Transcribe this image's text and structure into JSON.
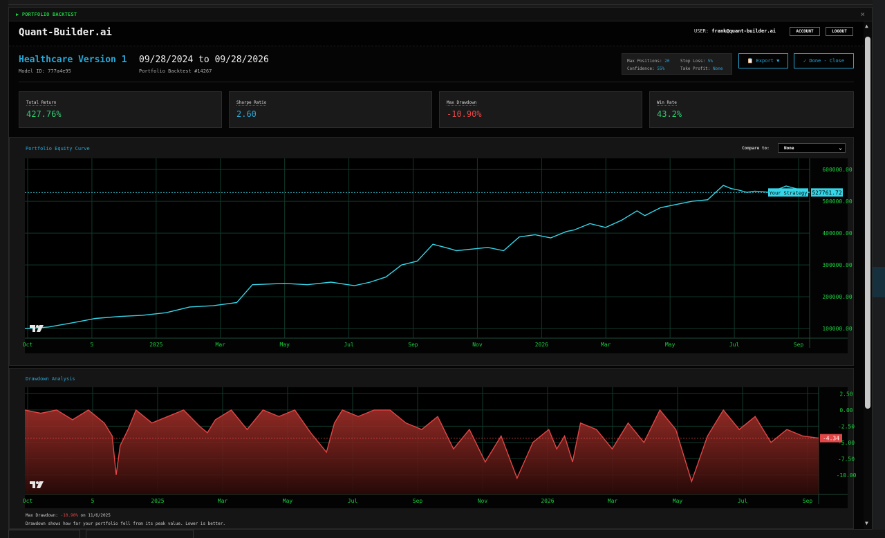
{
  "window": {
    "title": "▶ PORTFOLIO BACKTEST",
    "close_icon": "×"
  },
  "header": {
    "brand": "Quant-Builder.ai",
    "user_label": "USER:",
    "user_email": "frank@quant-builder.ai",
    "account_label": "ACCOUNT",
    "logout_label": "LOGOUT"
  },
  "info": {
    "model_name": "Healthcare Version 1",
    "date_range": "09/28/2024 to 09/28/2026",
    "model_id": "Model ID: 777a4e95",
    "backtest_id": "Portfolio Backtest #14267"
  },
  "params": {
    "max_positions_label": "Max Positions:",
    "max_positions": "20",
    "stop_loss_label": "Stop Loss:",
    "stop_loss": "5%",
    "confidence_label": "Confidence:",
    "confidence": "55%",
    "take_profit_label": "Take Profit:",
    "take_profit": "None"
  },
  "actions": {
    "export_label": "📋 Export ▼",
    "done_label": "✓ Done - Close"
  },
  "metrics": [
    {
      "label": "Total Return",
      "value": "427.76%",
      "color": "#2ecc71"
    },
    {
      "label": "Sharpe Ratio",
      "value": "2.60",
      "color": "#27a8d8"
    },
    {
      "label": "Max Drawdown",
      "value": "-10.90%",
      "color": "#e24646"
    },
    {
      "label": "Win Rate",
      "value": "43.2%",
      "color": "#2ecc71"
    }
  ],
  "equity_panel": {
    "title": "Portfolio Equity Curve",
    "compare_label": "Compare to:",
    "compare_value": "None",
    "strategy_tag": "Your Strategy",
    "last_value_label": "527761.72"
  },
  "drawdown_panel": {
    "title": "Drawdown Analysis",
    "last_value_label": "-4.34",
    "max_dd_label": "Max Drawdown:",
    "max_dd_value": "-10.90%",
    "max_dd_date": "on 11/6/2025",
    "explanation": "Drawdown shows how far your portfolio fell from its peak value. Lower is better."
  },
  "colors": {
    "accent": "#27a8d8",
    "line": "#35d6e8",
    "drawdown": "#e24646",
    "positive": "#2ecc71",
    "tick": "#19d33f"
  },
  "chart_data": [
    {
      "type": "line",
      "xlabels": [
        "Oct",
        "5",
        "2025",
        "Mar",
        "May",
        "Jul",
        "Sep",
        "Nov",
        "2026",
        "Mar",
        "May",
        "Jul",
        "Sep"
      ],
      "yticks": [
        "600000.00",
        "500000.00",
        "400000.00",
        "300000.00",
        "200000.00",
        "100000.00"
      ],
      "ylim": [
        70000,
        635000
      ],
      "series": [
        {
          "name": "Your Strategy",
          "x": [
            0,
            0.03,
            0.06,
            0.09,
            0.12,
            0.15,
            0.18,
            0.21,
            0.24,
            0.27,
            0.29,
            0.31,
            0.33,
            0.36,
            0.39,
            0.42,
            0.44,
            0.46,
            0.48,
            0.5,
            0.52,
            0.54,
            0.55,
            0.57,
            0.59,
            0.61,
            0.63,
            0.65,
            0.67,
            0.69,
            0.7,
            0.72,
            0.74,
            0.76,
            0.78,
            0.79,
            0.81,
            0.83,
            0.85,
            0.87,
            0.89,
            0.9,
            0.91,
            0.92,
            0.93,
            0.95,
            0.97,
            0.99,
            1.0
          ],
          "y": [
            100000,
            105000,
            118000,
            132000,
            138000,
            142000,
            150000,
            168000,
            172000,
            182000,
            238000,
            240000,
            242000,
            238000,
            246000,
            235000,
            246000,
            262000,
            300000,
            312000,
            365000,
            352000,
            345000,
            350000,
            355000,
            345000,
            388000,
            395000,
            385000,
            405000,
            410000,
            430000,
            418000,
            440000,
            470000,
            455000,
            480000,
            490000,
            500000,
            505000,
            550000,
            540000,
            535000,
            528000,
            532000,
            528000,
            548000,
            535000,
            527761
          ]
        }
      ],
      "last_value": 527761.72,
      "grid": true
    },
    {
      "type": "area",
      "xlabels": [
        "Oct",
        "5",
        "2025",
        "Mar",
        "May",
        "Jul",
        "Sep",
        "Nov",
        "2026",
        "Mar",
        "May",
        "Jul",
        "Sep"
      ],
      "yticks": [
        "2.50",
        "0.00",
        "-2.50",
        "-5.00",
        "-7.50",
        "-10.00"
      ],
      "ylim": [
        -13,
        3.5
      ],
      "series": [
        {
          "name": "",
          "x": [
            0,
            0.02,
            0.04,
            0.06,
            0.08,
            0.1,
            0.11,
            0.115,
            0.12,
            0.13,
            0.14,
            0.16,
            0.18,
            0.2,
            0.22,
            0.23,
            0.24,
            0.26,
            0.28,
            0.3,
            0.32,
            0.34,
            0.36,
            0.38,
            0.39,
            0.4,
            0.42,
            0.44,
            0.46,
            0.48,
            0.5,
            0.52,
            0.54,
            0.56,
            0.58,
            0.6,
            0.62,
            0.64,
            0.66,
            0.67,
            0.68,
            0.69,
            0.7,
            0.72,
            0.74,
            0.76,
            0.78,
            0.8,
            0.82,
            0.84,
            0.86,
            0.88,
            0.9,
            0.92,
            0.94,
            0.96,
            0.98,
            1.0
          ],
          "y": [
            0,
            -0.5,
            0,
            -1.5,
            0,
            -2,
            -4,
            -10,
            -5.5,
            -3,
            0,
            -2,
            -1,
            0,
            -2.5,
            -3.5,
            -1.5,
            0,
            -3,
            0,
            -1,
            0,
            -3.5,
            -6.5,
            -2,
            0,
            -1,
            0,
            0,
            -2,
            -3,
            -1,
            -6,
            -3,
            -8,
            -4,
            -10.5,
            -5,
            -3,
            -6,
            -4,
            -8,
            -2,
            -3,
            -6,
            -2,
            -5,
            0,
            -3,
            -11,
            -4,
            0,
            -3,
            -1,
            -5,
            -3,
            -4,
            -4.34
          ]
        }
      ],
      "last_value": -4.34,
      "grid": true
    }
  ]
}
